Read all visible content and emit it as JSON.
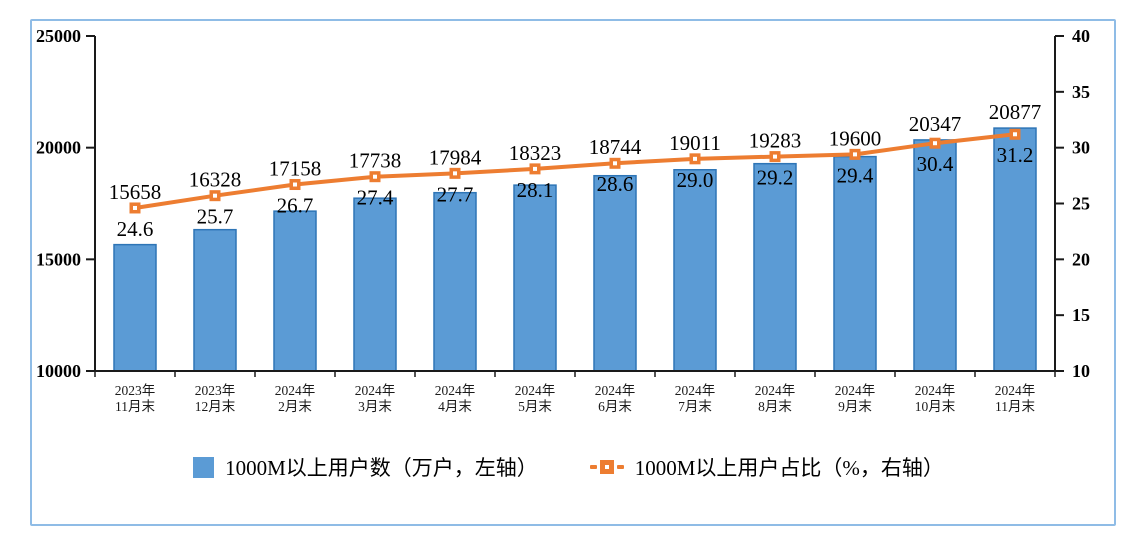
{
  "chart_data": {
    "type": "bar",
    "subtype": "combo-bar-line-dual-axis",
    "title": "",
    "categories": [
      [
        "2023年",
        "11月末"
      ],
      [
        "2023年",
        "12月末"
      ],
      [
        "2024年",
        "2月末"
      ],
      [
        "2024年",
        "3月末"
      ],
      [
        "2024年",
        "4月末"
      ],
      [
        "2024年",
        "5月末"
      ],
      [
        "2024年",
        "6月末"
      ],
      [
        "2024年",
        "7月末"
      ],
      [
        "2024年",
        "8月末"
      ],
      [
        "2024年",
        "9月末"
      ],
      [
        "2024年",
        "10月末"
      ],
      [
        "2024年",
        "11月末"
      ]
    ],
    "series": [
      {
        "name": "1000M以上用户数（万户，左轴）",
        "type": "bar",
        "axis": "left",
        "color": "#5B9BD5",
        "border_color": "#2E75B6",
        "values": [
          15658,
          16328,
          17158,
          17738,
          17984,
          18323,
          18744,
          19011,
          19283,
          19600,
          20347,
          20877
        ],
        "labels": [
          "15658",
          "16328",
          "17158",
          "17738",
          "17984",
          "18323",
          "18744",
          "19011",
          "19283",
          "19600",
          "20347",
          "20877"
        ]
      },
      {
        "name": "1000M以上用户占比（%，右轴）",
        "type": "line",
        "axis": "right",
        "color": "#ED7D31",
        "marker": "square",
        "values": [
          24.6,
          25.7,
          26.7,
          27.4,
          27.7,
          28.1,
          28.6,
          29.0,
          29.2,
          29.4,
          30.4,
          31.2
        ],
        "labels": [
          "24.6",
          "25.7",
          "26.7",
          "27.4",
          "27.7",
          "28.1",
          "28.6",
          "29.0",
          "29.2",
          "29.4",
          "30.4",
          "31.2"
        ]
      }
    ],
    "left_axis": {
      "min": 10000,
      "max": 25000,
      "tick_step": 5000,
      "ticks": [
        "10000",
        "15000",
        "20000",
        "25000"
      ]
    },
    "right_axis": {
      "min": 10,
      "max": 40,
      "tick_step": 5,
      "ticks": [
        "10",
        "15",
        "20",
        "25",
        "30",
        "35",
        "40"
      ]
    },
    "grid": false,
    "legend_position": "bottom"
  },
  "legend": {
    "items": [
      {
        "label": "1000M以上用户数（万户，左轴）",
        "swatch": "blue-bar-square"
      },
      {
        "label": "1000M以上用户占比（%，右轴）",
        "swatch": "orange-line-marker"
      }
    ]
  },
  "colors": {
    "bar_fill": "#5B9BD5",
    "bar_border": "#2E75B6",
    "line": "#ED7D31",
    "marker_center": "#FFFFFF",
    "frame_border": "#8FBCE6",
    "axis_line": "#1a1a1a",
    "label_text": "#000000"
  }
}
